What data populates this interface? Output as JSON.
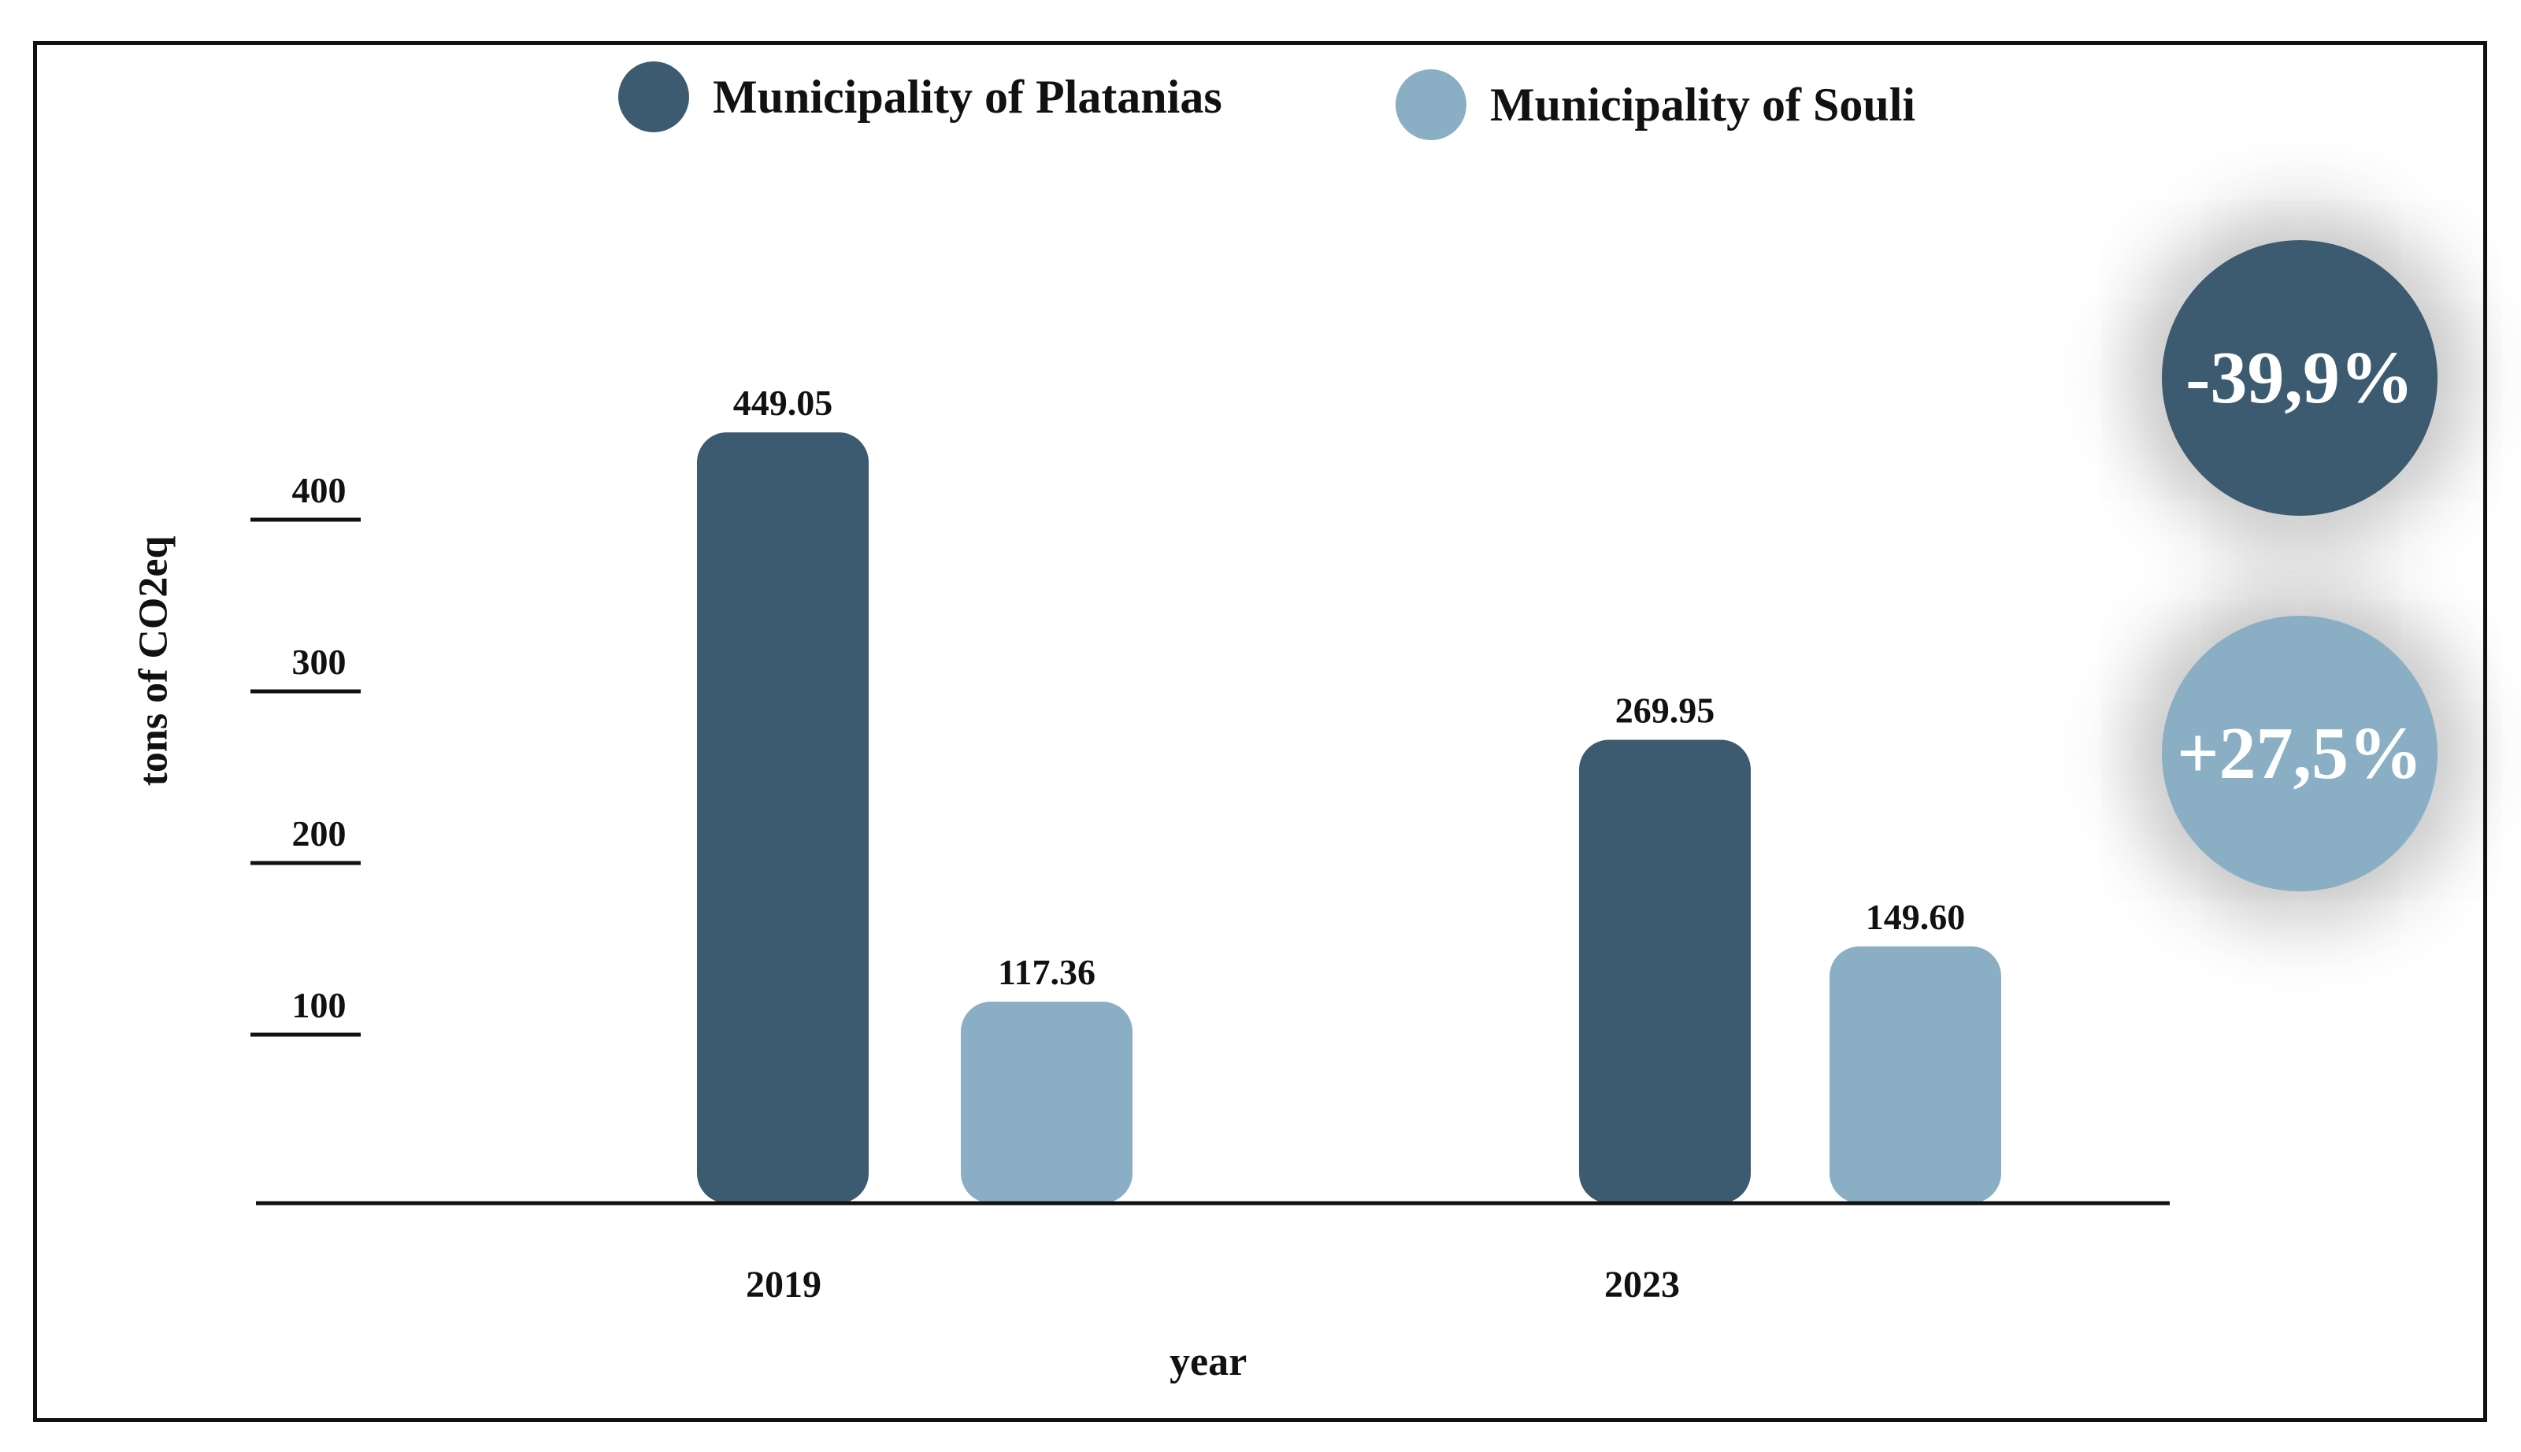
{
  "colors": {
    "platanias": "#3c5b70",
    "souli": "#8aafc4",
    "axis": "#111111"
  },
  "legend": [
    {
      "name": "Municipality of Platanias",
      "color": "#3c5b70"
    },
    {
      "name": "Municipality of Souli",
      "color": "#8aafc4"
    }
  ],
  "badges": [
    {
      "text": "-39,9%",
      "color": "#3c5b70"
    },
    {
      "text": "+27,5%",
      "color": "#8aafc4"
    }
  ],
  "chart_data": {
    "type": "bar",
    "categories": [
      "2019",
      "2023"
    ],
    "series": [
      {
        "name": "Municipality of Platanias",
        "values": [
          449.05,
          269.95
        ]
      },
      {
        "name": "Municipality of Souli",
        "values": [
          117.36,
          149.6
        ]
      }
    ],
    "value_labels": [
      [
        "449.05",
        "269.95"
      ],
      [
        "117.36",
        "149.60"
      ]
    ],
    "xlabel": "year",
    "ylabel": "tons of CO2eq",
    "yticks": [
      "100",
      "200",
      "300",
      "400"
    ],
    "ylim": [
      0,
      460
    ],
    "grid": false,
    "legend_position": "top"
  }
}
